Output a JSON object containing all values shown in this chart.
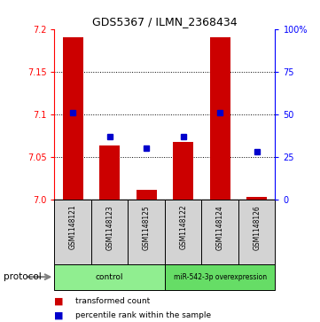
{
  "title": "GDS5367 / ILMN_2368434",
  "samples": [
    "GSM1148121",
    "GSM1148123",
    "GSM1148125",
    "GSM1148122",
    "GSM1148124",
    "GSM1148126"
  ],
  "transformed_counts": [
    7.19,
    7.063,
    7.012,
    7.068,
    7.19,
    7.003
  ],
  "percentile_ranks": [
    51,
    37,
    30,
    37,
    51,
    28
  ],
  "ylim_left": [
    7.0,
    7.2
  ],
  "ylim_right": [
    0,
    100
  ],
  "yticks_left": [
    7.0,
    7.05,
    7.1,
    7.15,
    7.2
  ],
  "yticks_right": [
    0,
    25,
    50,
    75,
    100
  ],
  "ytick_labels_right": [
    "0",
    "25",
    "50",
    "75",
    "100%"
  ],
  "grid_values": [
    7.05,
    7.1,
    7.15
  ],
  "bar_color": "#cc0000",
  "marker_color": "#0000cc",
  "bar_width": 0.55,
  "groups": [
    {
      "label": "control",
      "samples": [
        0,
        1,
        2
      ],
      "color": "#90ee90"
    },
    {
      "label": "miR-542-3p overexpression",
      "samples": [
        3,
        4,
        5
      ],
      "color": "#66dd66"
    }
  ],
  "protocol_label": "protocol",
  "legend_items": [
    {
      "color": "#cc0000",
      "label": "transformed count"
    },
    {
      "color": "#0000cc",
      "label": "percentile rank within the sample"
    }
  ],
  "background_color": "#ffffff",
  "label_box_color": "#d3d3d3"
}
